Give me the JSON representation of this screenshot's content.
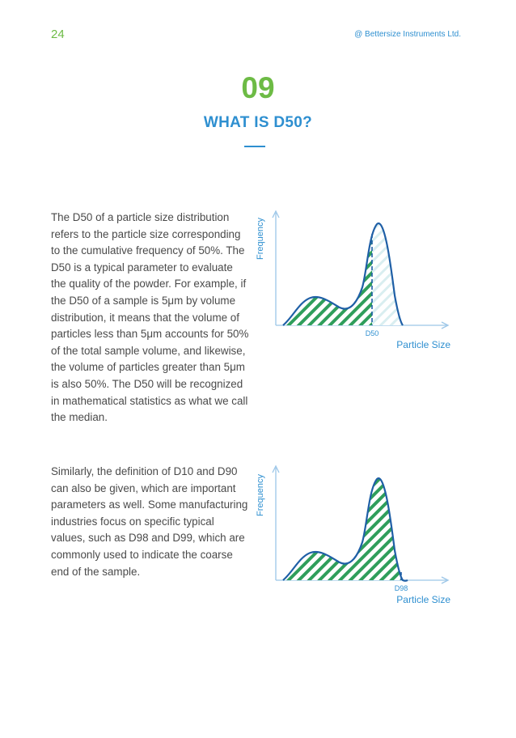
{
  "header": {
    "page_number": "24",
    "company": "@ Bettersize Instruments Ltd."
  },
  "section": {
    "number": "09",
    "title": "WHAT IS D50?"
  },
  "paragraphs": [
    "The D50 of a particle size distribution refers to the particle size corresponding to the cumulative frequency of 50%. The D50 is a typical parameter to evaluate the quality of the powder. For example, if the D50 of a sample is 5μm by volume distribution, it means that the volume of particles less than 5μm accounts for 50% of the total sample volume, and likewise, the volume of particles greater than 5μm is also 50%. The D50 will be recognized in mathematical statistics as what we call the median.",
    "Similarly, the definition of D10 and D90 can also be given, which are important parameters as well. Some manufacturing industries focus on specific typical values, such as D98 and D99, which are commonly used to indicate the coarse end of the sample."
  ],
  "charts": [
    {
      "ylabel": "Frequency",
      "xlabel": "Particle Size",
      "marker_label": "D50"
    },
    {
      "ylabel": "Frequency",
      "xlabel": "Particle Size",
      "marker_label": "D98"
    }
  ],
  "colors": {
    "green": "#6dbb45",
    "blue": "#2e8fd0",
    "curve": "#1f5fa6",
    "hatch": "#2f9e5b",
    "text": "#4a4a4a"
  }
}
